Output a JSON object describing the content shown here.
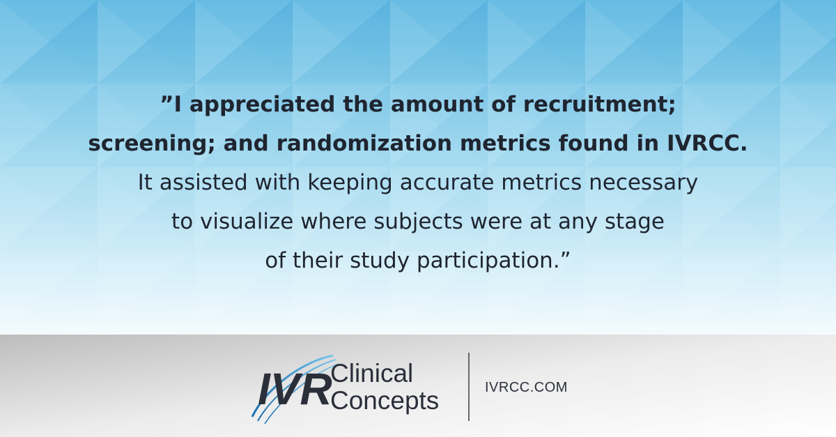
{
  "quote": {
    "bold_lines": [
      "”I appreciated the amount of recruitment;",
      "screening; and randomization metrics found in IVRCC."
    ],
    "lines": [
      "It assisted with keeping accurate metrics necessary",
      "to visualize where subjects were at any stage",
      "of their study participation.”"
    ]
  },
  "logo": {
    "mark": "IVR",
    "name_lines": [
      "Clinical",
      "Concepts"
    ]
  },
  "website": "IVRCC.COM"
}
